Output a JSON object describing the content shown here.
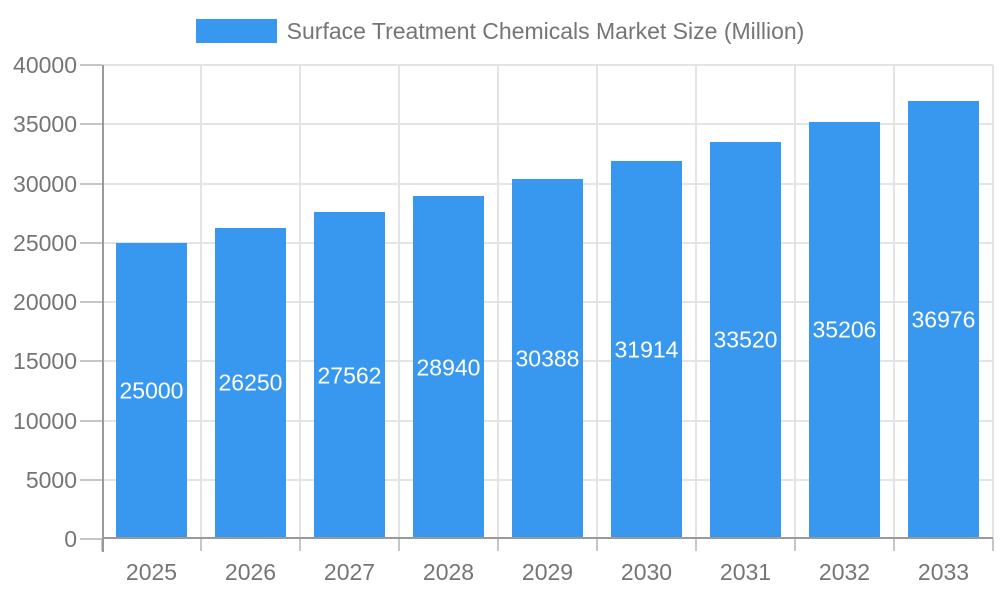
{
  "chart_data": {
    "type": "bar",
    "title": "Surface Treatment Chemicals Market Size (Million)",
    "categories": [
      "2025",
      "2026",
      "2027",
      "2028",
      "2029",
      "2030",
      "2031",
      "2032",
      "2033"
    ],
    "values": [
      25000,
      26250,
      27562,
      28940,
      30388,
      31914,
      33520,
      35206,
      36976
    ],
    "xlabel": "",
    "ylabel": "",
    "ylim": [
      0,
      40000
    ],
    "ytick_step": 5000,
    "yticks": [
      0,
      5000,
      10000,
      15000,
      20000,
      25000,
      30000,
      35000,
      40000
    ],
    "grid": true,
    "legend_position": "top",
    "bar_label_position": "inside-center",
    "colors": {
      "bar": "#3898f0",
      "bar_label": "#ffffff",
      "axis_line": "#999999",
      "tick_mark": "#c6c6c6",
      "gridline": "#e4e4e8",
      "tick_text": "#757575",
      "legend_text": "#757575",
      "background": "#ffffff"
    }
  }
}
